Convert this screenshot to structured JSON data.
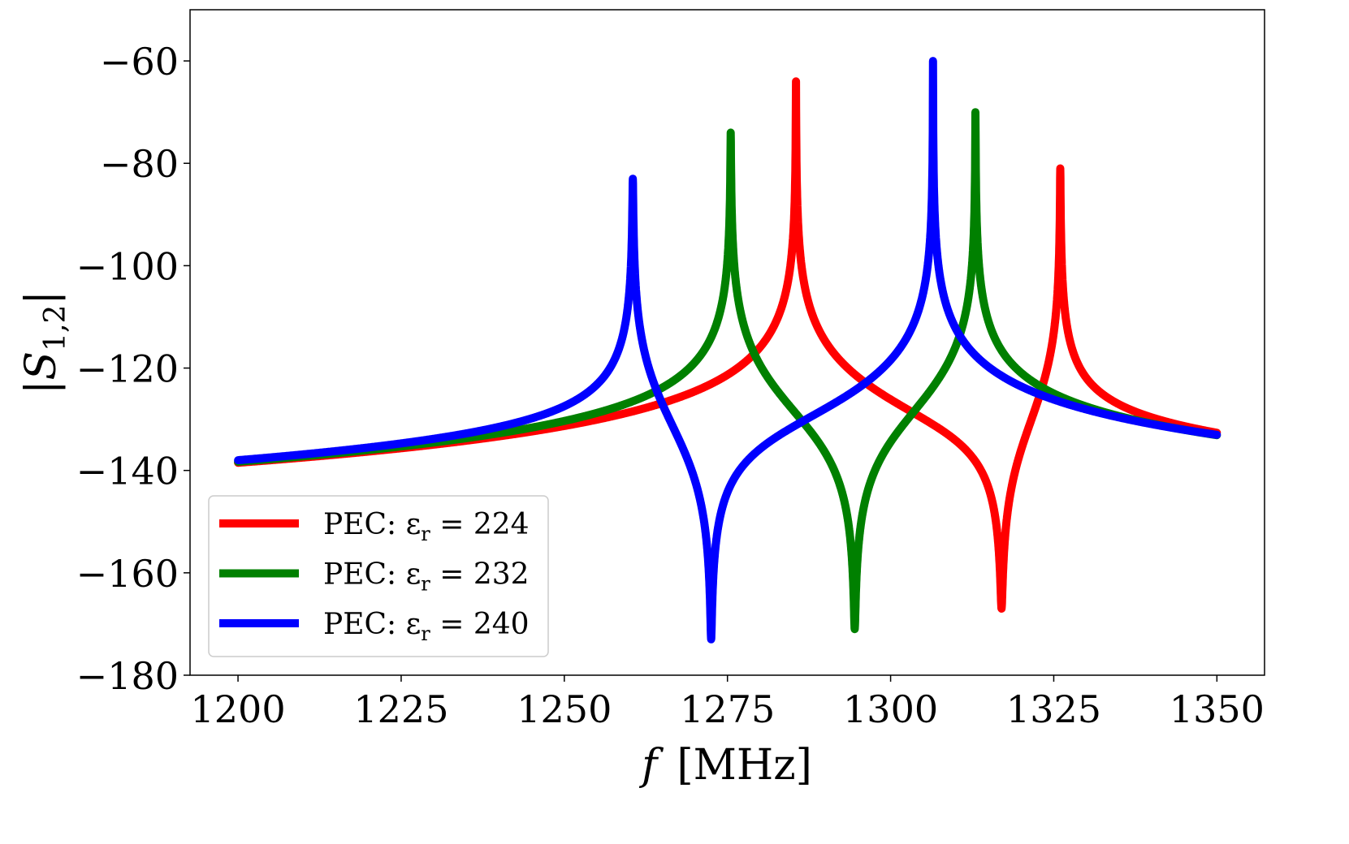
{
  "chart_data": {
    "type": "line",
    "title": "",
    "xlabel_italic": "f",
    "xlabel_unit": "[MHz]",
    "ylabel_main": "|S",
    "ylabel_sub": "1,2",
    "ylabel_close": "|",
    "xlim": [
      1192.65,
      1357.3
    ],
    "ylim": [
      -180,
      -50
    ],
    "xticks": [
      1200,
      1225,
      1250,
      1275,
      1300,
      1325,
      1350
    ],
    "xtick_labels": [
      "1200",
      "1225",
      "1250",
      "1275",
      "1300",
      "1325",
      "1350"
    ],
    "yticks": [
      -60,
      -80,
      -100,
      -120,
      -140,
      -160,
      -180
    ],
    "ytick_labels": [
      "−60",
      "−80",
      "−100",
      "−120",
      "−140",
      "−160",
      "−180"
    ],
    "grid": false,
    "legend_position": "lower-left",
    "x_range": [
      1200,
      1350
    ],
    "series": [
      {
        "name": "PEC: εr = 224",
        "legend_prefix": "PEC: ε",
        "legend_sub": "r",
        "legend_suffix": " = 224",
        "color": "#ff0000",
        "start_value": -138.5,
        "peaks": [
          {
            "f": 1285.5,
            "value": -64
          },
          {
            "f": 1326,
            "value": -81
          }
        ],
        "notch": {
          "f": 1317,
          "value": -167
        }
      },
      {
        "name": "PEC: εr = 232",
        "legend_prefix": "PEC: ε",
        "legend_sub": "r",
        "legend_suffix": " = 232",
        "color": "#008000",
        "start_value": -138.3,
        "peaks": [
          {
            "f": 1275.5,
            "value": -74
          },
          {
            "f": 1313,
            "value": -70
          }
        ],
        "notch": {
          "f": 1294.5,
          "value": -171
        }
      },
      {
        "name": "PEC: εr = 240",
        "legend_prefix": "PEC: ε",
        "legend_sub": "r",
        "legend_suffix": " = 240",
        "color": "#0000ff",
        "start_value": -138,
        "peaks": [
          {
            "f": 1260.5,
            "value": -83
          },
          {
            "f": 1306.5,
            "value": -60
          }
        ],
        "notch": {
          "f": 1272.5,
          "value": -173
        }
      }
    ]
  }
}
